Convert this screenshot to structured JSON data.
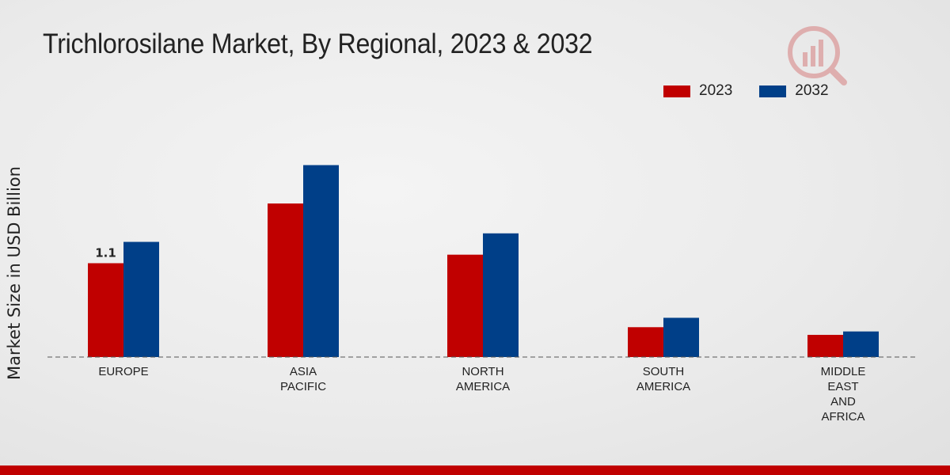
{
  "chart_data": {
    "type": "bar",
    "title": "Trichlorosilane Market, By Regional, 2023 & 2032",
    "xlabel": "",
    "ylabel": "Market Size in USD Billion",
    "categories": [
      [
        "EUROPE"
      ],
      [
        "ASIA",
        "PACIFIC"
      ],
      [
        "NORTH",
        "AMERICA"
      ],
      [
        "SOUTH",
        "AMERICA"
      ],
      [
        "MIDDLE",
        "EAST",
        "AND",
        "AFRICA"
      ]
    ],
    "series": [
      {
        "name": "2023",
        "color": "#c00000",
        "values": [
          1.1,
          1.8,
          1.2,
          0.35,
          0.26
        ]
      },
      {
        "name": "2032",
        "color": "#003f88",
        "values": [
          1.35,
          2.25,
          1.45,
          0.46,
          0.3
        ]
      }
    ],
    "data_labels": [
      {
        "series": 0,
        "index": 0,
        "text": "1.1"
      }
    ],
    "ylim": [
      0,
      4.0
    ],
    "grid": false,
    "legend_position": "top-right"
  },
  "colors": {
    "accent_bar": "#c00000"
  }
}
